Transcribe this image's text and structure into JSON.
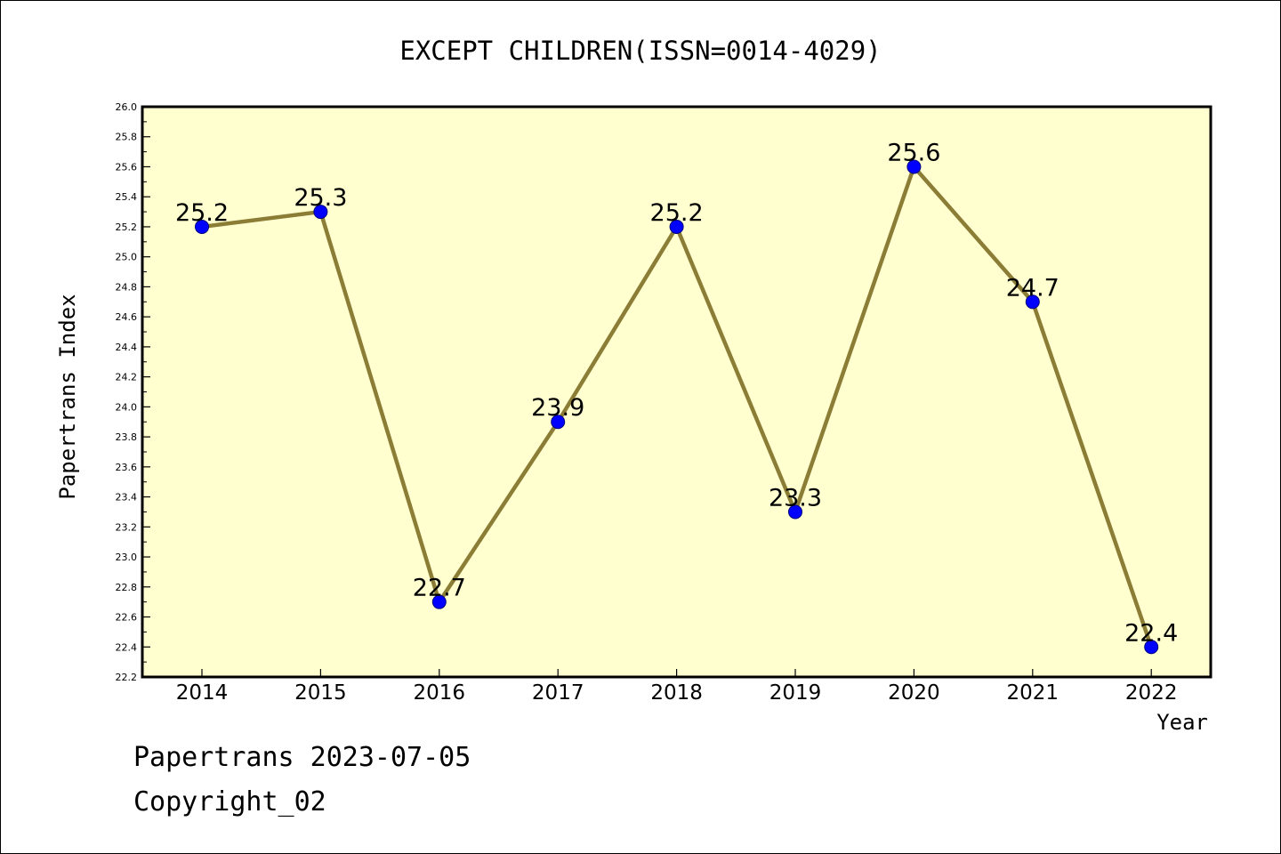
{
  "chart_data": {
    "type": "line",
    "title": "EXCEPT CHILDREN(ISSN=0014-4029)",
    "xlabel": "Year",
    "ylabel": "Papertrans Index",
    "categories": [
      "2014",
      "2015",
      "2016",
      "2017",
      "2018",
      "2019",
      "2020",
      "2021",
      "2022"
    ],
    "values": [
      25.2,
      25.3,
      22.7,
      23.9,
      25.2,
      23.3,
      25.6,
      24.7,
      22.4
    ],
    "data_labels": [
      "25.2",
      "25.3",
      "22.7",
      "23.9",
      "25.2",
      "23.3",
      "25.6",
      "24.7",
      "22.4"
    ],
    "ylim": [
      22.2,
      26.0
    ],
    "yticks": [
      "22.2",
      "22.4",
      "22.6",
      "22.8",
      "23.0",
      "23.2",
      "23.4",
      "23.6",
      "23.8",
      "24.0",
      "24.2",
      "24.4",
      "24.6",
      "24.8",
      "25.0",
      "25.2",
      "25.4",
      "25.6",
      "25.8",
      "26.0"
    ],
    "grid": false,
    "legend": "none",
    "colors": {
      "plot_background": "#ffffd0",
      "line": "#8b7d35",
      "marker": "#0000ff",
      "marker_edge": "#000080"
    }
  },
  "footer": {
    "line1": "Papertrans 2023-07-05",
    "line2": "Copyright_02"
  }
}
